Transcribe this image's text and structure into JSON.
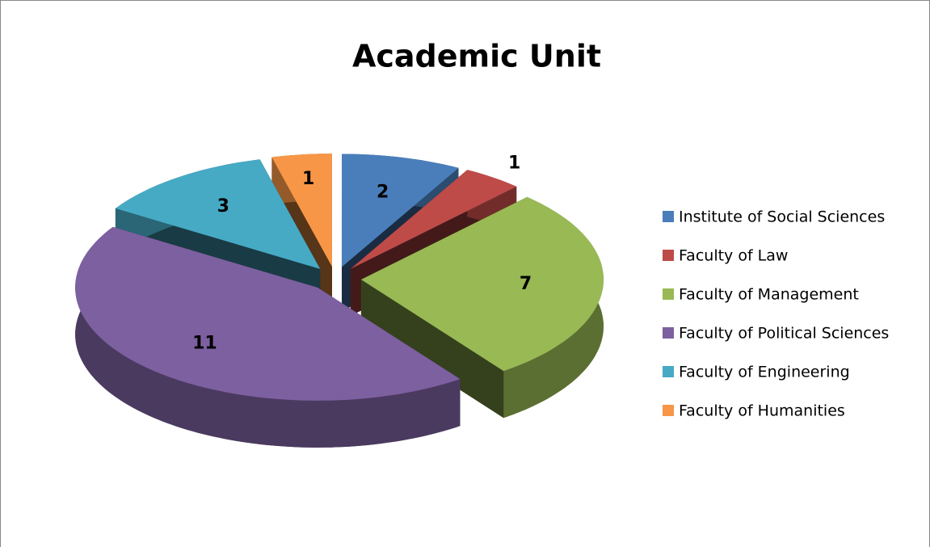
{
  "chart_data": {
    "type": "pie",
    "title": "Academic Unit",
    "categories": [
      "Institute of Social Sciences",
      "Faculty of Law",
      "Faculty of Management",
      "Faculty of Political Sciences",
      "Faculty of Engineering",
      "Faculty of Humanities"
    ],
    "values": [
      2,
      1,
      7,
      11,
      3,
      1
    ],
    "colors": [
      "#4a7ebb",
      "#be4b48",
      "#98b954",
      "#7d60a0",
      "#46aac5",
      "#f79646"
    ],
    "legend": "right"
  }
}
